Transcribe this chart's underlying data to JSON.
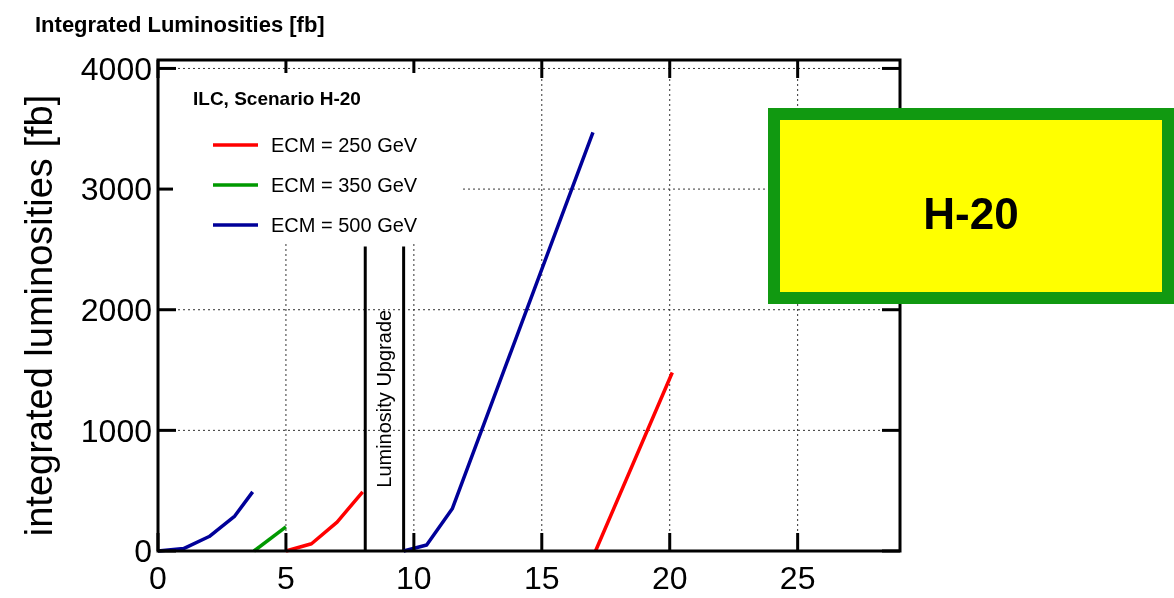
{
  "chart_data": {
    "type": "line",
    "title": "Integrated Luminosities  [fb]",
    "ylabel": "integrated luminosities  [fb]",
    "legend_title": "ILC, Scenario H-20",
    "legend": "top left",
    "grid": true,
    "line_style": "solid",
    "xlim": [
      0,
      29
    ],
    "xticks": [
      0,
      5,
      10,
      15,
      20,
      25
    ],
    "ylim": [
      0,
      4070
    ],
    "yticks": [
      0,
      1000,
      2000,
      3000,
      4000
    ],
    "series": [
      {
        "name": "ECM = 250 GeV",
        "color": "#ff0000",
        "x": [
          5,
          6,
          7,
          8,
          12,
          17.1,
          20.1
        ],
        "values": [
          0,
          60,
          240,
          490,
          null,
          0,
          1480
        ]
      },
      {
        "name": "ECM = 350 GeV",
        "color": "#009900",
        "x": [
          3.75,
          5
        ],
        "values": [
          0,
          200
        ]
      },
      {
        "name": "ECM = 500 GeV",
        "color": "#000099",
        "x": [
          0,
          1,
          2,
          3,
          3.7,
          6,
          9.6,
          10.5,
          11.5,
          17
        ],
        "values": [
          0,
          20,
          120,
          290,
          490,
          null,
          0,
          50,
          350,
          3470
        ]
      }
    ],
    "ref_lines": [
      {
        "axis": "x",
        "value": 8.1,
        "label": "Luminosity Upgrade",
        "color": "#000000"
      },
      {
        "axis": "x",
        "value": 9.6,
        "color": "#000000"
      }
    ],
    "annotations": [
      "H-20"
    ]
  }
}
